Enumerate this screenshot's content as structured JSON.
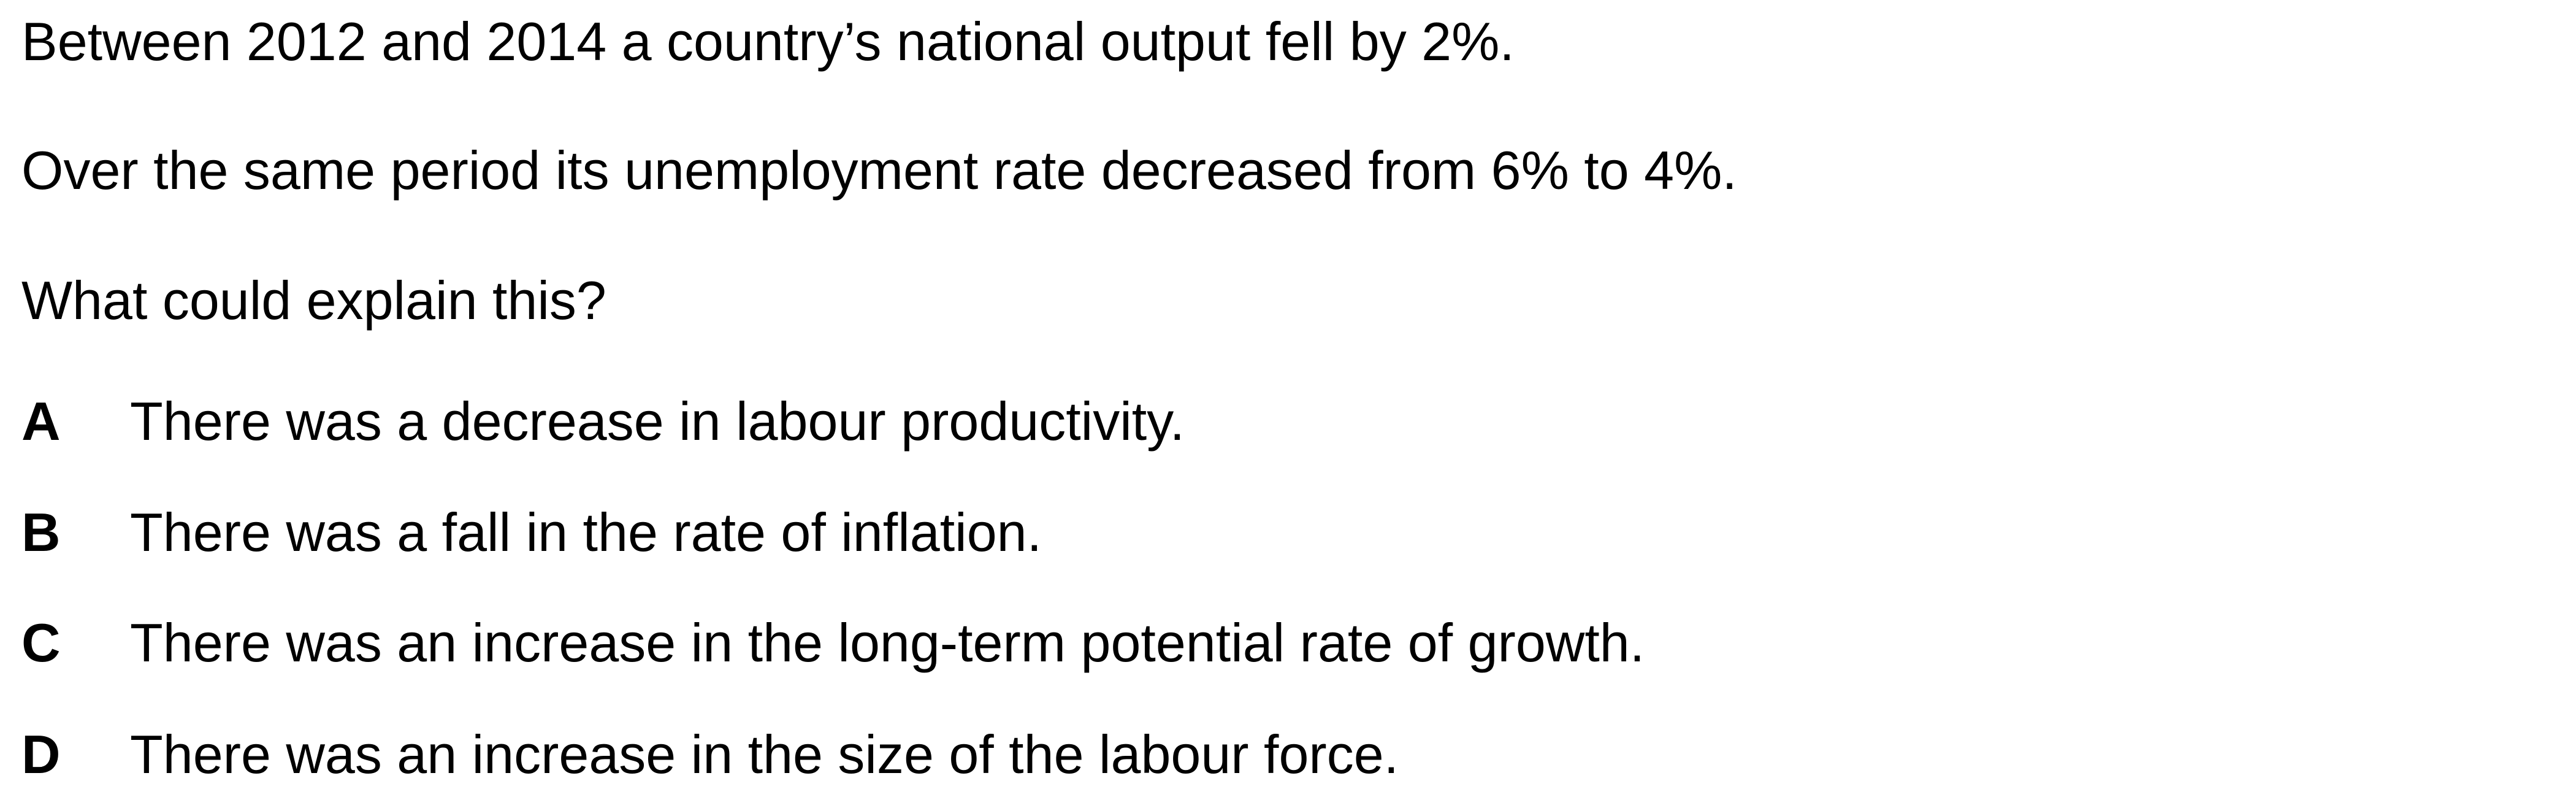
{
  "question": {
    "stem": [
      "Between 2012 and 2014 a country’s national output fell by 2%.",
      "Over the same period its unemployment rate decreased from 6% to 4%.",
      "What could explain this?"
    ],
    "options": [
      {
        "letter": "A",
        "text": "There was a decrease in labour productivity."
      },
      {
        "letter": "B",
        "text": "There was a fall in the rate of inflation."
      },
      {
        "letter": "C",
        "text": "There was an increase in the long-term potential rate of growth."
      },
      {
        "letter": "D",
        "text": "There was an increase in the size of the labour force."
      }
    ]
  }
}
